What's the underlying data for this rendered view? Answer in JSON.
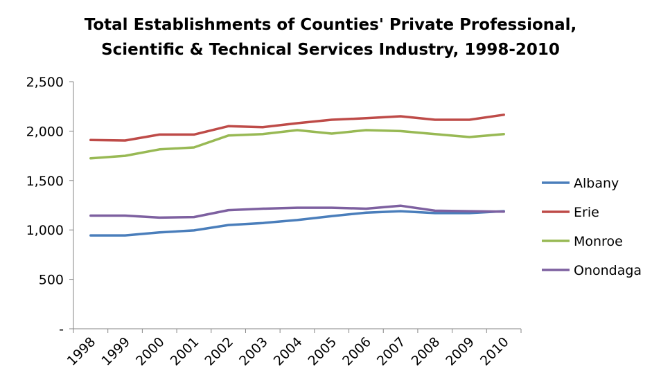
{
  "chart_data": {
    "type": "line",
    "title": [
      "Total Establishments of Counties' Private Professional,",
      "Scientific & Technical Services Industry, 1998-2010"
    ],
    "categories": [
      "1998",
      "1999",
      "2000",
      "2001",
      "2002",
      "2003",
      "2004",
      "2005",
      "2006",
      "2007",
      "2008",
      "2009",
      "2010"
    ],
    "ylim": [
      0,
      2500
    ],
    "yticks": [
      0,
      500,
      1000,
      1500,
      2000,
      2500
    ],
    "ytick_labels": [
      "-",
      "500",
      "1,000",
      "1,500",
      "2,000",
      "2,500"
    ],
    "grid": false,
    "legend_position": "right",
    "series": [
      {
        "name": "Albany",
        "color": "#4a7ebb",
        "values": [
          945,
          945,
          975,
          995,
          1050,
          1070,
          1100,
          1140,
          1175,
          1190,
          1170,
          1170,
          1190
        ]
      },
      {
        "name": "Erie",
        "color": "#be4b48",
        "values": [
          1910,
          1905,
          1965,
          1965,
          2050,
          2040,
          2080,
          2115,
          2130,
          2150,
          2115,
          2115,
          2165
        ]
      },
      {
        "name": "Monroe",
        "color": "#98b954",
        "values": [
          1725,
          1750,
          1815,
          1835,
          1955,
          1970,
          2010,
          1975,
          2010,
          2000,
          1970,
          1940,
          1970
        ]
      },
      {
        "name": "Onondaga",
        "color": "#7d60a0",
        "values": [
          1145,
          1145,
          1125,
          1130,
          1200,
          1215,
          1225,
          1225,
          1215,
          1245,
          1195,
          1190,
          1185
        ]
      }
    ]
  }
}
